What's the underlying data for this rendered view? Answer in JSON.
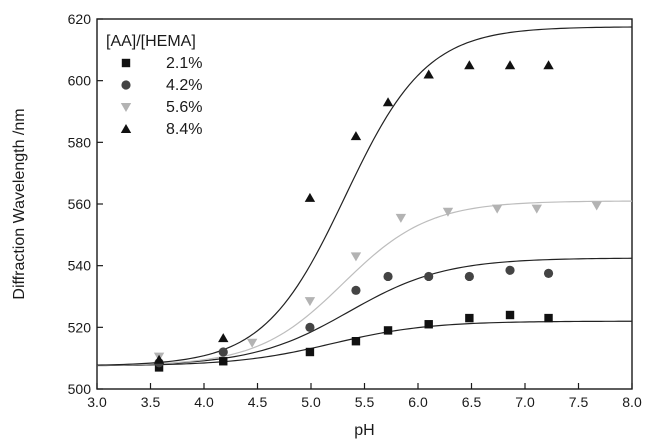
{
  "chart_data": {
    "type": "scatter",
    "title": "",
    "xlabel": "pH",
    "ylabel": "Diffraction Wavelength /nm",
    "xlim": [
      3.0,
      8.0
    ],
    "ylim": [
      500,
      620
    ],
    "x_ticks": [
      "3.0",
      "3.5",
      "4.0",
      "4.5",
      "5.0",
      "5.5",
      "6.0",
      "6.5",
      "7.0",
      "7.5",
      "8.0"
    ],
    "y_ticks": [
      "500",
      "520",
      "540",
      "560",
      "580",
      "600",
      "620"
    ],
    "grid": false,
    "legend": {
      "title": "[AA]/[HEMA]",
      "position": "top-left"
    },
    "series": [
      {
        "name": "2.1%",
        "marker": "square",
        "color": "#111111",
        "points": [
          [
            3.58,
            507
          ],
          [
            4.18,
            509
          ],
          [
            4.99,
            512
          ],
          [
            5.42,
            515.5
          ],
          [
            5.72,
            519
          ],
          [
            6.1,
            521
          ],
          [
            6.48,
            523
          ],
          [
            6.86,
            524
          ],
          [
            7.22,
            523
          ]
        ],
        "fit": {
          "base": 507.5,
          "plateau": 522,
          "pH_half": 5.2,
          "slope": 0.45
        }
      },
      {
        "name": "4.2%",
        "marker": "circle",
        "color": "#444444",
        "points": [
          [
            3.58,
            508.5
          ],
          [
            4.18,
            512
          ],
          [
            4.99,
            520
          ],
          [
            5.42,
            532
          ],
          [
            5.72,
            536.5
          ],
          [
            6.1,
            536.5
          ],
          [
            6.48,
            536.5
          ],
          [
            6.86,
            538.5
          ],
          [
            7.22,
            537.5
          ]
        ],
        "fit": {
          "base": 507.5,
          "plateau": 542.5,
          "pH_half": 5.35,
          "slope": 0.45
        }
      },
      {
        "name": "5.6%",
        "marker": "triangle-down",
        "color": "#b3b3b3",
        "points": [
          [
            3.58,
            510.5
          ],
          [
            4.45,
            515
          ],
          [
            4.99,
            528.5
          ],
          [
            5.42,
            543
          ],
          [
            5.84,
            555.5
          ],
          [
            6.28,
            557.5
          ],
          [
            6.74,
            558.5
          ],
          [
            7.11,
            558.5
          ],
          [
            7.67,
            559.5
          ]
        ],
        "fit": {
          "base": 507.5,
          "plateau": 561,
          "pH_half": 5.3,
          "slope": 0.4
        }
      },
      {
        "name": "8.4%",
        "marker": "triangle-up",
        "color": "#111111",
        "points": [
          [
            3.58,
            509.5
          ],
          [
            4.18,
            516.5
          ],
          [
            4.99,
            562
          ],
          [
            5.42,
            582
          ],
          [
            5.72,
            593
          ],
          [
            6.1,
            602
          ],
          [
            6.48,
            605
          ],
          [
            6.86,
            605
          ],
          [
            7.22,
            605
          ]
        ],
        "fit": {
          "base": 507.5,
          "plateau": 617.5,
          "pH_half": 5.32,
          "slope": 0.38
        }
      }
    ]
  }
}
